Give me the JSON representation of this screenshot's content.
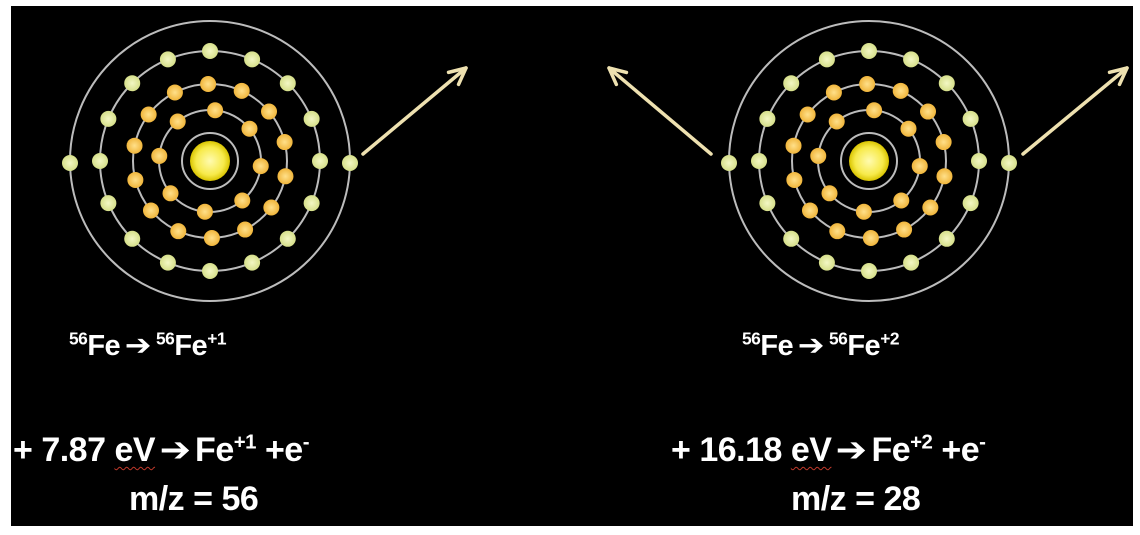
{
  "colors": {
    "background": "#000000",
    "orbit": "#bcbcbc",
    "nucleus": "#f7ea4a",
    "inner_electron": "#f0b53b",
    "outer_electron": "#d6df8a",
    "arrow": "#eee1b0",
    "text": "#ffffff"
  },
  "atoms": [
    {
      "id": "fe-plus1",
      "ejected_electrons": 1,
      "reaction": {
        "isotope": "56",
        "reactant": "Fe",
        "arrow": "➔",
        "product": "Fe",
        "charge": "+1"
      },
      "ionization": {
        "prefix": "+",
        "energy": "7.87",
        "unit": "eV",
        "arrow": "➔",
        "ion": "Fe",
        "charge": "+1",
        "plus": "+e",
        "electron_charge": "-"
      },
      "mz": {
        "label": "m/z",
        "equals": "=",
        "value": "56"
      }
    },
    {
      "id": "fe-plus2",
      "ejected_electrons": 2,
      "reaction": {
        "isotope": "56",
        "reactant": "Fe",
        "arrow": "➔",
        "product": "Fe",
        "charge": "+2"
      },
      "ionization": {
        "prefix": "+",
        "energy": "16.18",
        "unit": "eV",
        "arrow": "➔",
        "ion": "Fe",
        "charge": "+2",
        "plus": "+e",
        "electron_charge": "-"
      },
      "mz": {
        "label": "m/z",
        "equals": "=",
        "value": "28"
      }
    }
  ]
}
